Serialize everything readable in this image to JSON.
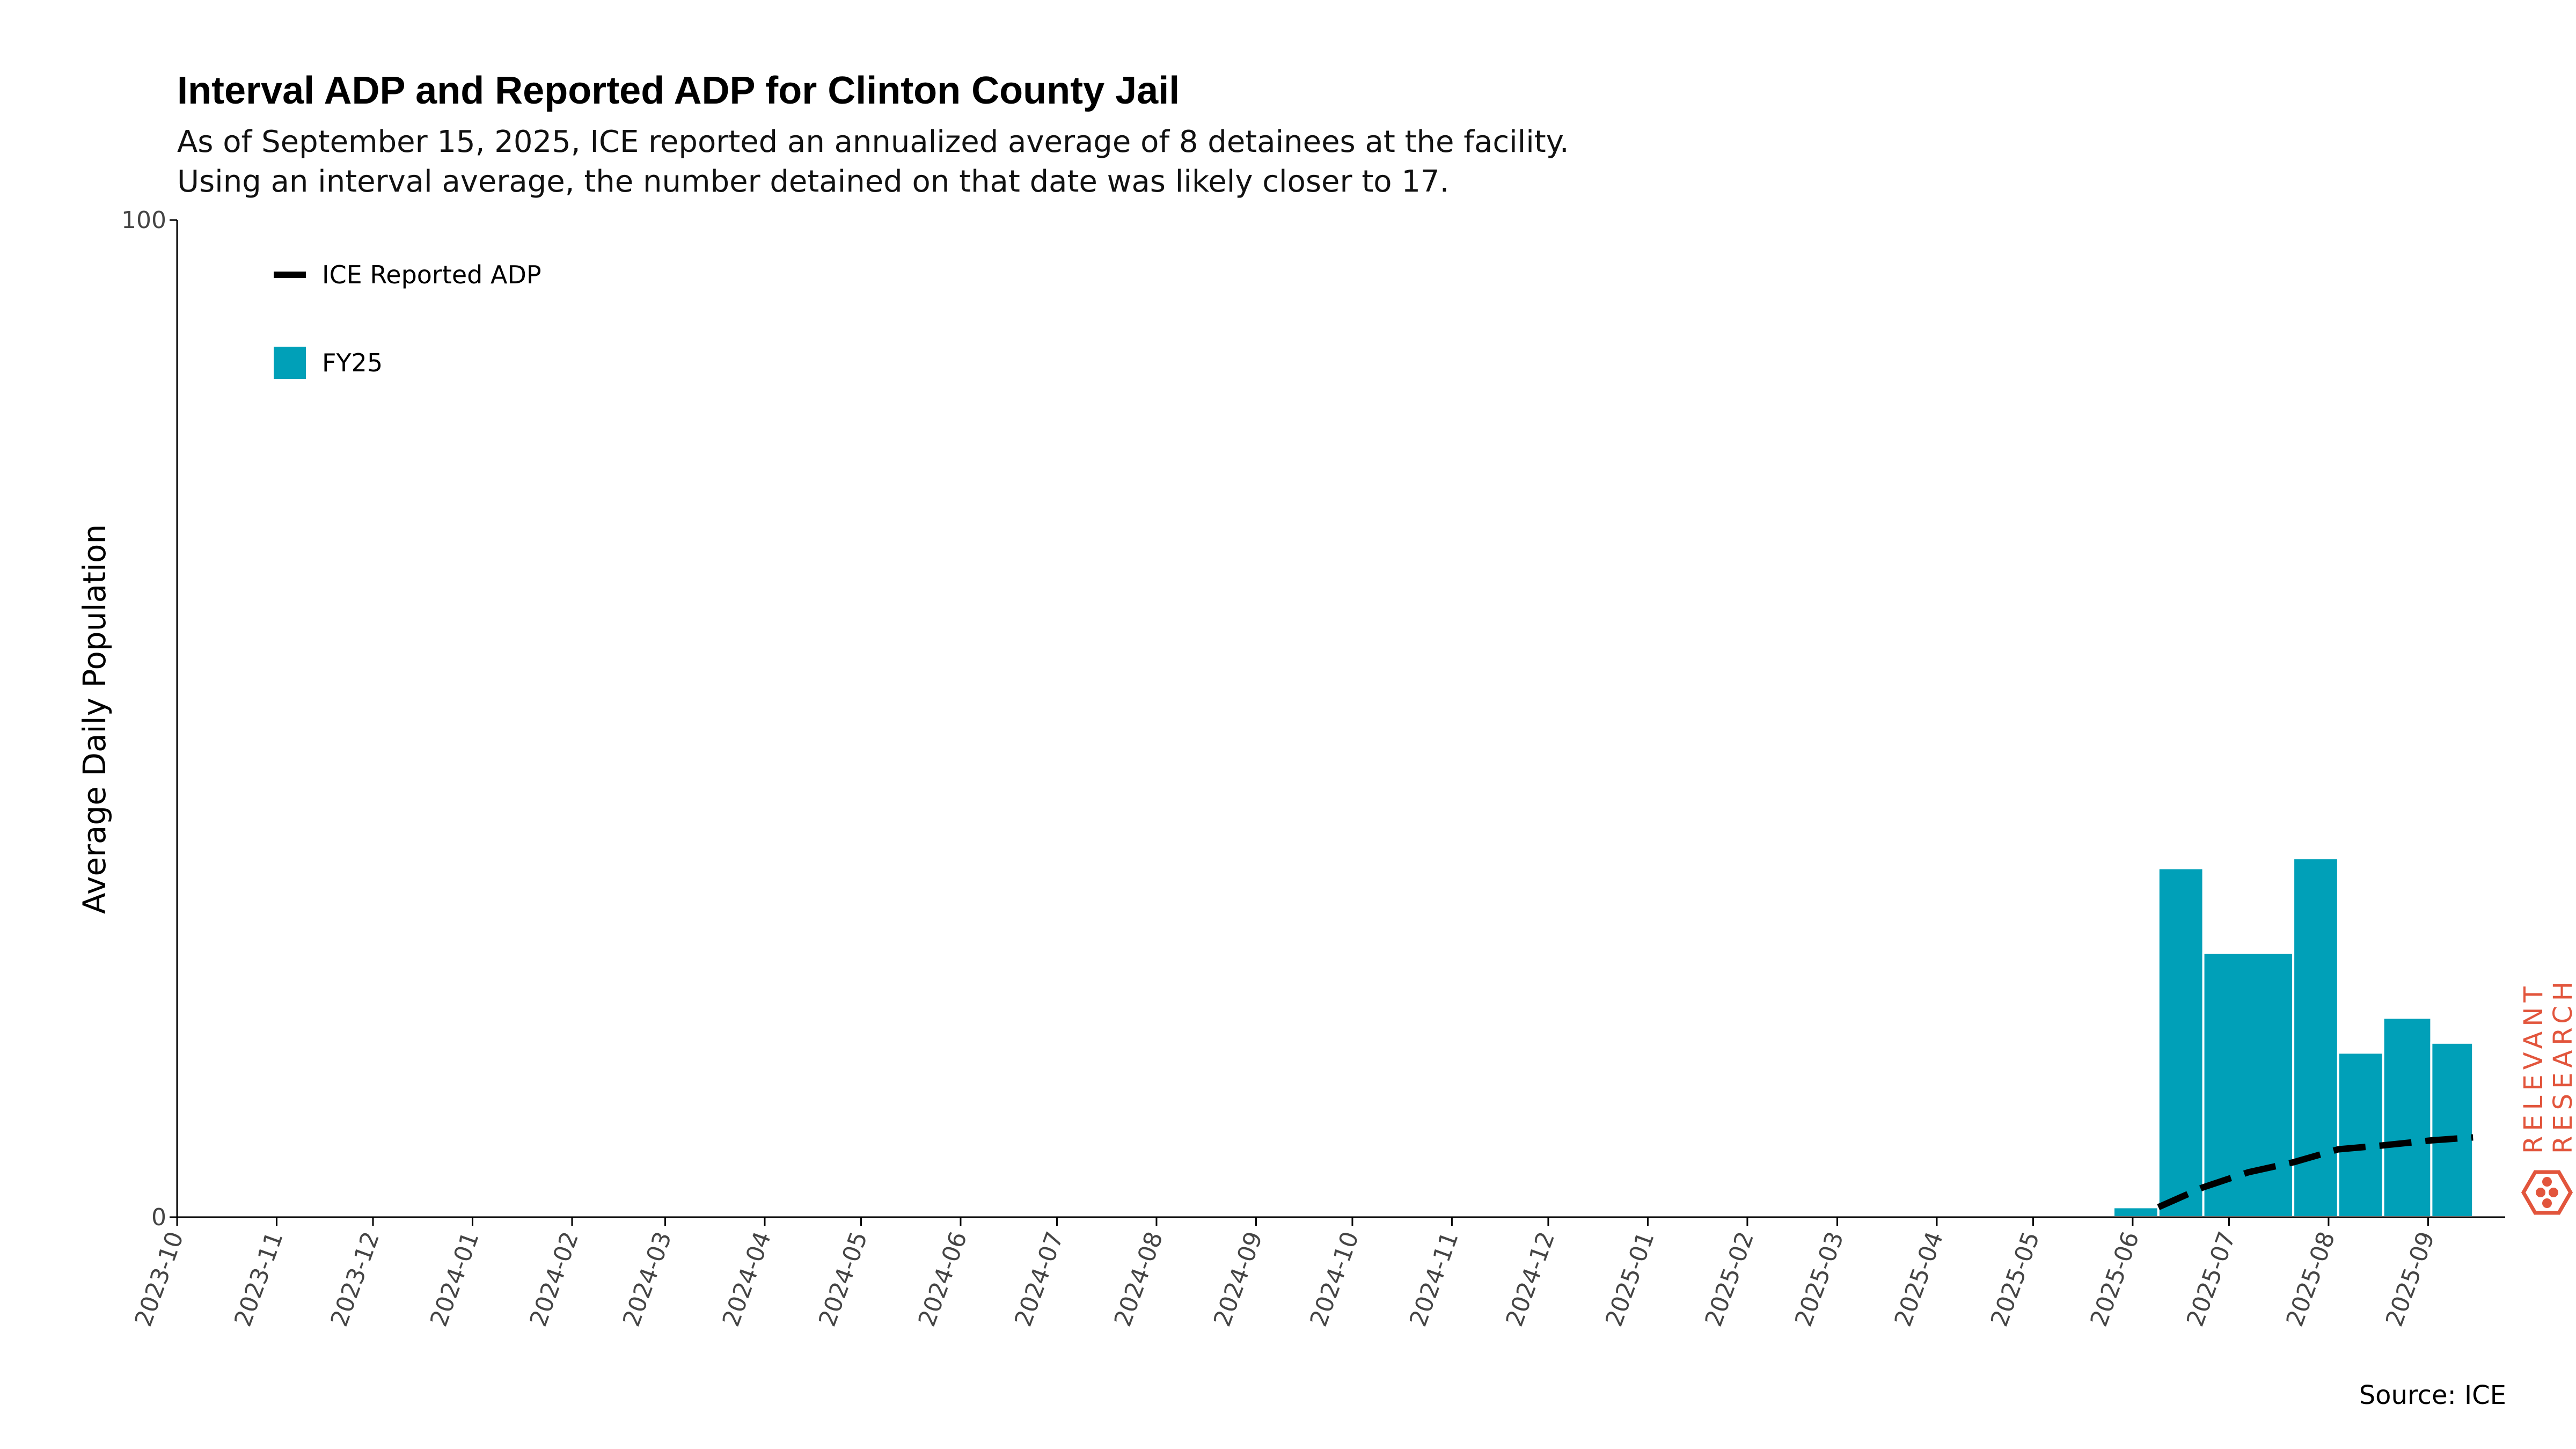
{
  "title": "Interval ADP and Reported ADP for Clinton County Jail",
  "subtitle_line1": "As of September 15, 2025, ICE reported an annualized average of 8 detainees at the facility.",
  "subtitle_line2": "Using an interval average, the number detained on that date was likely closer to 17.",
  "source": "Source: ICE",
  "brand": {
    "line1": "RELEVANT",
    "line2": "RESEARCH",
    "color": "#e2553c"
  },
  "chart_data": {
    "type": "bar",
    "title": "Interval ADP and Reported ADP for Clinton County Jail",
    "ylabel": "Average Daily Population",
    "xlabel": "",
    "ylim": [
      0,
      100
    ],
    "yticks": [
      0,
      100
    ],
    "xlim": [
      "2023-10-01",
      "2025-09-25"
    ],
    "xticks": [
      "2023-10",
      "2023-11",
      "2023-12",
      "2024-01",
      "2024-02",
      "2024-03",
      "2024-04",
      "2024-05",
      "2024-06",
      "2024-07",
      "2024-08",
      "2024-09",
      "2024-10",
      "2024-11",
      "2024-12",
      "2025-01",
      "2025-02",
      "2025-03",
      "2025-04",
      "2025-05",
      "2025-06",
      "2025-07",
      "2025-08",
      "2025-09"
    ],
    "legend": {
      "position": "top-left",
      "entries": [
        "ICE Reported ADP",
        "FY25"
      ]
    },
    "grid": false,
    "series": [
      {
        "name": "FY25",
        "type": "bar",
        "color": "#00a0b8",
        "bars": [
          {
            "start": "2025-05-26",
            "end": "2025-06-09",
            "value": 1
          },
          {
            "start": "2025-06-09",
            "end": "2025-06-23",
            "value": 35
          },
          {
            "start": "2025-06-23",
            "end": "2025-07-21",
            "value": 26.5
          },
          {
            "start": "2025-07-21",
            "end": "2025-08-04",
            "value": 36
          },
          {
            "start": "2025-08-04",
            "end": "2025-08-18",
            "value": 16.5
          },
          {
            "start": "2025-08-18",
            "end": "2025-09-02",
            "value": 20
          },
          {
            "start": "2025-09-02",
            "end": "2025-09-15",
            "value": 17.5
          }
        ]
      },
      {
        "name": "ICE Reported ADP",
        "type": "line",
        "style": "dashed",
        "color": "#000000",
        "x": [
          "2025-06-09",
          "2025-06-23",
          "2025-07-07",
          "2025-07-21",
          "2025-08-04",
          "2025-08-18",
          "2025-09-02",
          "2025-09-15"
        ],
        "y": [
          1,
          3,
          4.5,
          5.5,
          6.8,
          7.2,
          7.7,
          8
        ]
      }
    ]
  }
}
